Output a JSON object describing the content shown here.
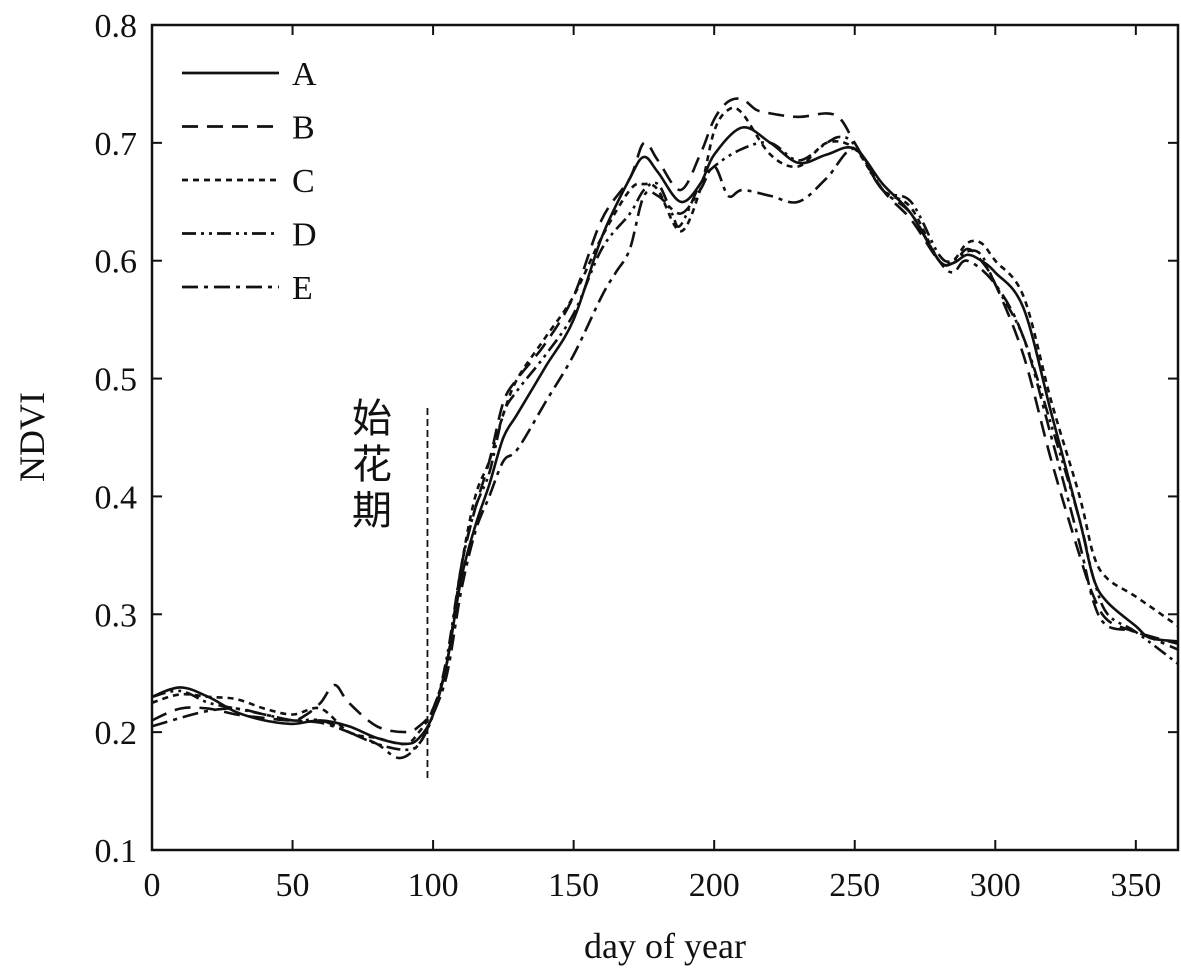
{
  "chart_data": {
    "type": "line",
    "xlabel": "day of year",
    "ylabel": "NDVI",
    "xlim": [
      0,
      365
    ],
    "ylim": [
      0.1,
      0.8
    ],
    "x_ticks": [
      0,
      50,
      100,
      150,
      200,
      250,
      300,
      350
    ],
    "y_ticks": [
      "0.1",
      "0.2",
      "0.3",
      "0.4",
      "0.5",
      "0.6",
      "0.7",
      "0.8"
    ],
    "grid": false,
    "legend_position": "top-left",
    "annotation": {
      "text": "始花期",
      "x": 98,
      "y_range": [
        0.16,
        0.475
      ]
    },
    "series": [
      {
        "name": "A",
        "dash": "solid",
        "x": [
          0,
          10,
          20,
          30,
          40,
          50,
          60,
          70,
          80,
          90,
          95,
          100,
          105,
          110,
          115,
          120,
          125,
          130,
          140,
          150,
          160,
          170,
          175,
          180,
          188,
          195,
          200,
          210,
          220,
          230,
          240,
          250,
          260,
          270,
          280,
          285,
          290,
          295,
          300,
          310,
          320,
          330,
          335,
          340,
          350,
          355,
          365
        ],
        "y": [
          0.23,
          0.238,
          0.23,
          0.217,
          0.21,
          0.207,
          0.21,
          0.205,
          0.195,
          0.19,
          0.195,
          0.215,
          0.26,
          0.33,
          0.375,
          0.41,
          0.45,
          0.47,
          0.51,
          0.55,
          0.62,
          0.67,
          0.688,
          0.675,
          0.65,
          0.665,
          0.69,
          0.713,
          0.7,
          0.683,
          0.69,
          0.695,
          0.665,
          0.64,
          0.6,
          0.598,
          0.605,
          0.6,
          0.59,
          0.56,
          0.47,
          0.38,
          0.33,
          0.31,
          0.29,
          0.28,
          0.277
        ]
      },
      {
        "name": "B",
        "dash": "dashed",
        "x": [
          0,
          10,
          20,
          30,
          40,
          50,
          55,
          60,
          65,
          70,
          80,
          90,
          95,
          100,
          105,
          110,
          115,
          120,
          125,
          130,
          140,
          150,
          160,
          170,
          175,
          180,
          188,
          195,
          200,
          205,
          210,
          215,
          220,
          230,
          240,
          245,
          250,
          260,
          270,
          280,
          285,
          290,
          295,
          300,
          310,
          320,
          330,
          335,
          340,
          350,
          365
        ],
        "y": [
          0.21,
          0.22,
          0.22,
          0.215,
          0.212,
          0.21,
          0.215,
          0.225,
          0.24,
          0.225,
          0.205,
          0.2,
          0.205,
          0.22,
          0.26,
          0.34,
          0.39,
          0.43,
          0.48,
          0.5,
          0.53,
          0.57,
          0.635,
          0.67,
          0.7,
          0.685,
          0.66,
          0.69,
          0.72,
          0.735,
          0.737,
          0.728,
          0.725,
          0.722,
          0.725,
          0.72,
          0.7,
          0.66,
          0.635,
          0.6,
          0.598,
          0.61,
          0.6,
          0.58,
          0.52,
          0.43,
          0.35,
          0.315,
          0.295,
          0.285,
          0.275
        ]
      },
      {
        "name": "C",
        "dash": "dotted",
        "x": [
          0,
          10,
          20,
          30,
          40,
          50,
          60,
          70,
          80,
          90,
          95,
          100,
          105,
          110,
          115,
          120,
          125,
          130,
          140,
          150,
          160,
          170,
          175,
          180,
          188,
          195,
          200,
          205,
          210,
          220,
          230,
          240,
          250,
          260,
          270,
          280,
          285,
          290,
          295,
          300,
          310,
          320,
          330,
          335,
          340,
          350,
          365
        ],
        "y": [
          0.225,
          0.232,
          0.23,
          0.228,
          0.22,
          0.215,
          0.22,
          0.2,
          0.195,
          0.19,
          0.2,
          0.22,
          0.26,
          0.34,
          0.4,
          0.43,
          0.47,
          0.5,
          0.535,
          0.57,
          0.62,
          0.66,
          0.665,
          0.66,
          0.625,
          0.66,
          0.71,
          0.728,
          0.725,
          0.69,
          0.68,
          0.7,
          0.695,
          0.66,
          0.645,
          0.6,
          0.6,
          0.615,
          0.615,
          0.6,
          0.57,
          0.48,
          0.4,
          0.35,
          0.33,
          0.315,
          0.29
        ]
      },
      {
        "name": "D",
        "dash": "dash-dot-dot",
        "x": [
          0,
          10,
          20,
          30,
          40,
          50,
          60,
          70,
          80,
          90,
          95,
          100,
          105,
          110,
          115,
          120,
          125,
          130,
          140,
          150,
          160,
          170,
          175,
          180,
          185,
          188,
          195,
          200,
          210,
          220,
          230,
          240,
          245,
          250,
          260,
          270,
          280,
          285,
          290,
          295,
          300,
          310,
          320,
          330,
          335,
          340,
          350,
          365
        ],
        "y": [
          0.23,
          0.235,
          0.225,
          0.22,
          0.215,
          0.21,
          0.21,
          0.2,
          0.19,
          0.185,
          0.19,
          0.215,
          0.265,
          0.34,
          0.39,
          0.42,
          0.47,
          0.49,
          0.52,
          0.555,
          0.61,
          0.64,
          0.66,
          0.665,
          0.64,
          0.63,
          0.665,
          0.68,
          0.695,
          0.7,
          0.685,
          0.7,
          0.705,
          0.698,
          0.66,
          0.65,
          0.605,
          0.6,
          0.608,
          0.605,
          0.58,
          0.535,
          0.46,
          0.38,
          0.33,
          0.3,
          0.285,
          0.258
        ]
      },
      {
        "name": "E",
        "dash": "dash-dot",
        "x": [
          0,
          10,
          20,
          30,
          40,
          50,
          60,
          70,
          80,
          88,
          95,
          100,
          105,
          110,
          115,
          120,
          125,
          130,
          140,
          150,
          160,
          165,
          170,
          175,
          180,
          188,
          195,
          200,
          205,
          210,
          220,
          230,
          240,
          250,
          260,
          270,
          280,
          285,
          290,
          300,
          310,
          320,
          330,
          335,
          340,
          350,
          365
        ],
        "y": [
          0.205,
          0.212,
          0.218,
          0.22,
          0.215,
          0.21,
          0.208,
          0.2,
          0.19,
          0.178,
          0.19,
          0.215,
          0.25,
          0.32,
          0.37,
          0.4,
          0.43,
          0.44,
          0.48,
          0.52,
          0.57,
          0.59,
          0.61,
          0.655,
          0.655,
          0.64,
          0.66,
          0.68,
          0.655,
          0.66,
          0.655,
          0.65,
          0.67,
          0.695,
          0.66,
          0.64,
          0.6,
          0.59,
          0.6,
          0.58,
          0.535,
          0.45,
          0.36,
          0.31,
          0.29,
          0.285,
          0.27
        ]
      }
    ]
  }
}
